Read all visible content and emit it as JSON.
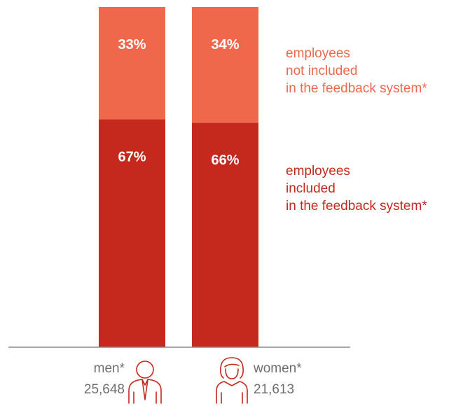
{
  "colors": {
    "included": "#c5281c",
    "not_included": "#f0684b",
    "axis": "#8a8a8a",
    "icon": "#c5281c",
    "text": "#6e6e6e"
  },
  "chart_data": {
    "type": "bar",
    "stacked": true,
    "categories": [
      "men*",
      "women*"
    ],
    "category_counts": [
      "25,648",
      "21,613"
    ],
    "series": [
      {
        "name": "employees included in the feedback system*",
        "values": [
          67,
          66
        ],
        "labels": [
          "67%",
          "66%"
        ]
      },
      {
        "name": "employees not included in the feedback system*",
        "values": [
          33,
          34
        ],
        "labels": [
          "33%",
          "34%"
        ]
      }
    ],
    "ylim": [
      0,
      100
    ],
    "grid": false,
    "legend_placement": "right"
  },
  "legend": {
    "not_included": [
      "employees",
      "not included",
      "in the feedback system*"
    ],
    "included": [
      "employees",
      "included",
      "in the feedback system*"
    ]
  },
  "icons": [
    "man-icon",
    "woman-icon"
  ]
}
